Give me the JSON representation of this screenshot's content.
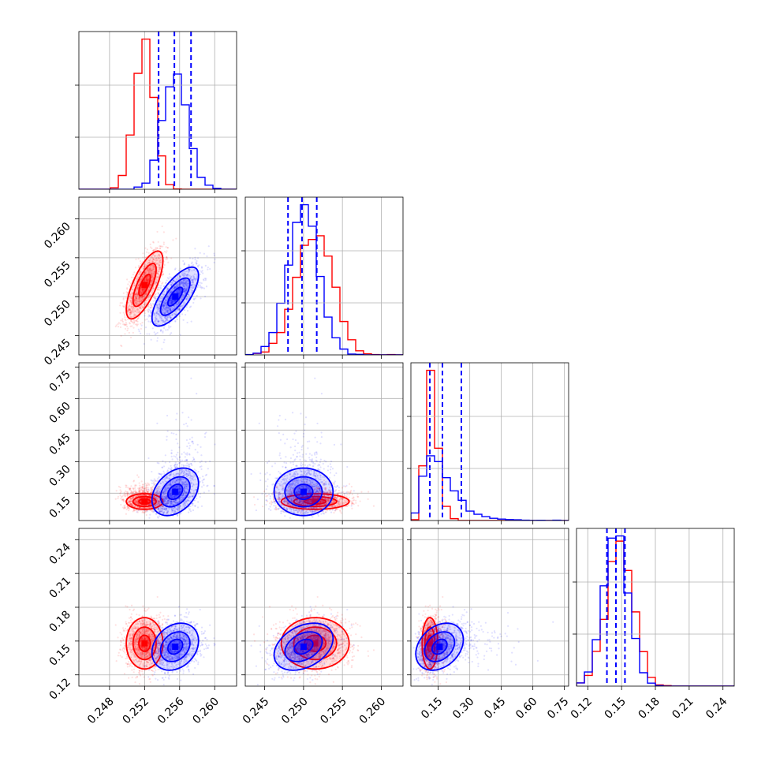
{
  "chart_data": {
    "type": "corner",
    "grid": true,
    "colors": {
      "red": "#ff0000",
      "blue": "#0000ff",
      "grid": "#b0b0b0"
    },
    "params": [
      {
        "range": [
          0.2445,
          0.2625
        ],
        "ticks": [
          0.248,
          0.252,
          0.256,
          0.26
        ],
        "tick_labels": [
          "0.248",
          "0.252",
          "0.256",
          "0.260"
        ]
      },
      {
        "range": [
          0.2425,
          0.2628
        ],
        "ticks": [
          0.245,
          0.25,
          0.255,
          0.26
        ],
        "tick_labels": [
          "0.245",
          "0.250",
          "0.255",
          "0.260"
        ]
      },
      {
        "range": [
          0.02,
          0.77
        ],
        "ticks": [
          0.15,
          0.3,
          0.45,
          0.6,
          0.75
        ],
        "tick_labels": [
          "0.15",
          "0.30",
          "0.45",
          "0.60",
          "0.75"
        ]
      },
      {
        "range": [
          0.11,
          0.25
        ],
        "ticks": [
          0.12,
          0.15,
          0.18,
          0.21,
          0.24
        ],
        "tick_labels": [
          "0.12",
          "0.15",
          "0.18",
          "0.21",
          "0.24"
        ]
      }
    ],
    "series": [
      {
        "color": "red",
        "means": [
          0.252,
          0.2515,
          0.12,
          0.148
        ],
        "sds": [
          0.0011,
          0.0023,
          0.028,
          0.012
        ],
        "corr": [
          [
            0,
            1,
            0.72
          ],
          [
            2,
            3,
            0.0
          ]
        ],
        "dist": [
          "normal",
          "normal",
          "lognormal",
          "normal"
        ]
      },
      {
        "color": "blue",
        "means": [
          0.2555,
          0.25,
          0.17,
          0.145
        ],
        "sds": [
          0.0014,
          0.002,
          0.085,
          0.011
        ],
        "corr": [
          [
            0,
            1,
            0.72
          ],
          [
            0,
            2,
            0.35
          ],
          [
            0,
            3,
            0.25
          ],
          [
            1,
            3,
            0.35
          ],
          [
            2,
            3,
            0.3
          ]
        ],
        "dist": [
          "normal",
          "normal",
          "lognormal",
          "normal"
        ]
      }
    ],
    "quantile_lines": [
      [
        0.2536,
        0.2554,
        0.2573
      ],
      [
        0.248,
        0.2498,
        0.2517
      ],
      [
        0.11,
        0.17,
        0.26
      ],
      [
        0.137,
        0.145,
        0.153
      ]
    ]
  }
}
